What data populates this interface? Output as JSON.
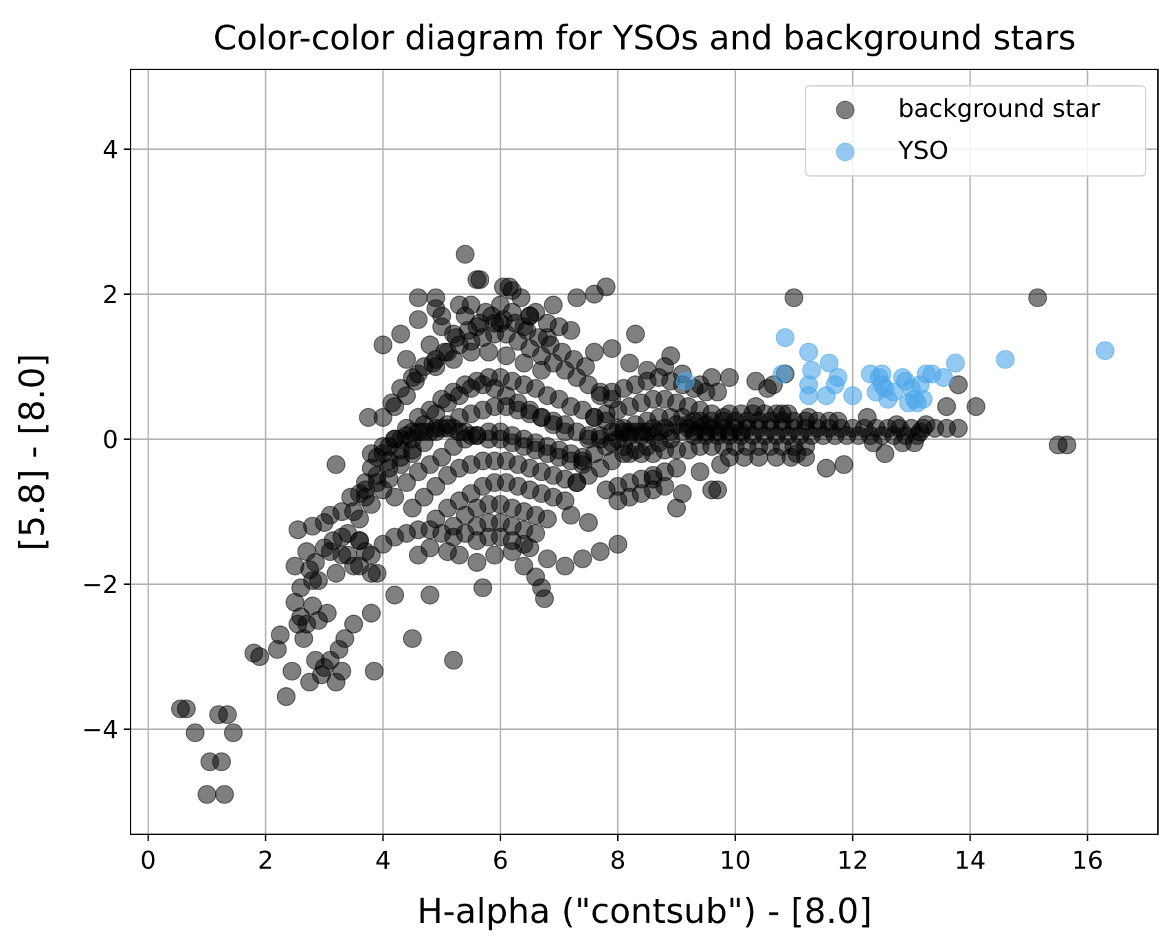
{
  "chart_data": {
    "type": "scatter",
    "title": "Color-color diagram for YSOs and background stars",
    "xlabel": "H-alpha (\"contsub\") - [8.0]",
    "ylabel": "[5.8] - [8.0]",
    "xlim": [
      -0.3,
      17.2
    ],
    "ylim": [
      -5.45,
      5.1
    ],
    "xticks": [
      0,
      2,
      4,
      6,
      8,
      10,
      12,
      14,
      16
    ],
    "xtick_labels": [
      "0",
      "2",
      "4",
      "6",
      "8",
      "10",
      "12",
      "14",
      "16"
    ],
    "yticks": [
      -4,
      -2,
      0,
      2,
      4
    ],
    "ytick_labels": [
      "−4",
      "−2",
      "0",
      "2",
      "4"
    ],
    "grid": true,
    "legend_position": "top-right",
    "series": [
      {
        "name": "background star",
        "color": "#000000",
        "opacity": 0.5,
        "x": [
          0.55,
          0.65,
          0.8,
          1.0,
          1.05,
          1.2,
          1.25,
          1.3,
          1.35,
          1.45,
          1.8,
          1.9,
          2.2,
          2.25,
          2.35,
          2.45,
          2.5,
          2.55,
          2.6,
          2.65,
          2.7,
          2.75,
          2.8,
          2.85,
          2.9,
          2.95,
          3.0,
          3.05,
          3.1,
          3.2,
          3.25,
          3.3,
          3.35,
          3.5,
          3.8,
          3.85,
          2.5,
          2.55,
          2.6,
          2.7,
          2.75,
          2.8,
          2.85,
          2.9,
          3.0,
          3.1,
          3.15,
          3.2,
          3.3,
          3.4,
          3.5,
          3.6,
          3.7,
          3.8,
          2.8,
          3.0,
          3.1,
          3.3,
          3.45,
          3.6,
          3.7,
          3.9,
          4.0,
          4.2,
          4.4,
          4.5,
          4.7,
          4.9,
          5.1,
          5.3,
          5.5,
          5.7,
          5.9,
          6.1,
          6.3,
          6.5,
          6.7,
          6.9,
          7.1,
          7.3,
          7.5,
          7.7,
          7.9,
          3.8,
          4.0,
          4.2,
          4.4,
          4.6,
          4.8,
          5.0,
          5.2,
          5.4,
          5.6,
          5.8,
          6.0,
          6.2,
          6.4,
          6.6,
          6.8,
          7.0,
          7.2,
          7.4,
          7.6,
          7.8,
          8.0,
          8.2,
          8.4,
          8.6,
          4.1,
          4.3,
          4.5,
          4.7,
          4.9,
          5.1,
          5.3,
          5.5,
          5.7,
          5.9,
          6.1,
          6.3,
          6.5,
          6.7,
          6.9,
          7.1,
          7.3,
          7.5,
          7.7,
          7.9,
          8.1,
          4.2,
          4.4,
          4.6,
          4.8,
          5.0,
          5.2,
          5.4,
          5.6,
          5.8,
          6.0,
          6.2,
          6.4,
          6.6,
          6.8,
          7.0,
          7.2,
          7.4,
          4.5,
          4.7,
          4.9,
          5.1,
          5.3,
          5.5,
          5.7,
          5.9,
          6.1,
          6.3,
          6.5,
          6.7,
          6.9,
          7.1,
          7.3,
          4.9,
          5.1,
          5.3,
          5.5,
          5.7,
          5.9,
          6.1,
          6.3,
          6.5,
          6.7,
          6.9,
          7.1,
          5.2,
          5.4,
          5.6,
          5.8,
          6.0,
          6.2,
          6.4,
          6.6,
          6.8,
          5.4,
          5.6,
          5.8,
          6.0,
          6.2,
          6.4,
          6.6,
          5.6,
          5.8,
          6.0,
          6.2,
          6.4,
          4.1,
          4.3,
          4.5,
          4.7,
          4.9,
          5.1,
          5.3,
          5.5,
          5.7,
          5.9,
          6.1,
          6.3,
          6.5,
          6.7,
          6.9,
          7.1,
          4.3,
          4.6,
          4.9,
          5.2,
          5.5,
          5.8,
          6.1,
          6.4,
          6.7,
          4.4,
          4.8,
          5.2,
          5.6,
          6.0,
          6.4,
          6.8,
          5.0,
          5.5,
          6.0,
          6.5,
          3.7,
          3.9,
          4.1,
          4.3,
          4.5,
          4.7,
          4.9,
          5.1,
          5.3,
          5.5,
          3.5,
          3.7,
          3.9,
          4.1,
          4.3,
          4.5,
          3.4,
          3.6,
          3.8,
          4.0,
          3.3,
          3.6,
          3.6,
          3.8,
          4.0,
          4.2,
          4.4,
          4.6,
          4.8,
          5.0,
          5.2,
          3.8,
          4.0,
          4.2,
          4.4,
          4.6,
          4.8,
          5.0,
          5.2,
          5.4,
          5.6,
          5.8,
          6.0,
          6.2,
          6.4,
          6.6,
          6.8,
          7.0,
          7.2,
          7.4,
          4.6,
          4.8,
          5.1,
          5.3,
          5.6,
          5.9,
          6.2,
          6.5,
          6.8,
          7.1,
          7.4,
          7.7,
          8.0,
          3.2,
          3.9,
          4.2,
          4.5,
          4.8,
          5.2,
          5.7,
          6.4,
          6.6,
          6.7,
          6.75,
          7.2,
          7.5,
          3.75,
          4.15,
          4.55,
          4.85,
          5.05,
          5.25,
          5.45,
          5.65,
          5.85,
          6.05,
          6.25,
          6.45,
          6.65,
          6.85,
          7.05,
          7.25,
          7.45,
          4.0,
          4.3,
          4.6,
          4.9,
          5.4,
          5.6,
          5.65,
          5.75,
          6.05,
          6.15,
          6.2,
          6.35,
          6.6,
          6.9,
          7.0,
          7.3,
          7.6,
          7.8,
          4.6,
          4.9,
          5.0,
          5.3,
          5.4,
          5.9,
          6.2,
          6.5,
          6.8,
          7.2,
          7.3,
          7.5,
          7.7,
          7.9,
          8.1,
          8.3,
          8.5,
          8.7,
          8.9,
          7.4,
          7.6,
          7.8,
          8.0,
          8.2,
          8.4,
          8.6,
          8.8,
          9.0,
          9.2,
          7.5,
          7.7,
          7.9,
          8.1,
          8.3,
          8.5,
          8.7,
          8.9,
          9.1,
          9.3,
          9.5,
          7.6,
          7.8,
          8.0,
          8.2,
          8.4,
          8.6,
          8.8,
          9.0,
          9.2,
          9.4,
          9.6,
          9.8,
          7.7,
          7.9,
          8.1,
          8.3,
          8.5,
          8.7,
          8.9,
          9.1,
          9.3,
          9.5,
          7.8,
          8.0,
          8.2,
          8.4,
          8.6,
          8.8,
          9.0,
          8.0,
          8.2,
          8.4,
          8.6,
          8.8,
          8.1,
          8.3,
          8.5,
          8.7,
          8.9,
          9.1,
          9.3,
          9.5,
          9.7,
          9.9,
          10.1,
          8.2,
          8.4,
          8.6,
          8.8,
          9.0,
          9.2,
          9.4,
          9.6,
          9.8,
          7.6,
          7.9,
          8.2,
          8.5,
          8.8,
          9.1,
          9.4,
          9.7,
          8.3,
          8.9,
          9.6,
          9.1,
          9.7,
          8.6,
          9.0,
          9.4,
          9.2,
          9.4,
          9.6,
          9.8,
          10.0,
          10.2,
          10.4,
          10.6,
          10.8,
          11.0,
          11.2,
          11.4,
          11.6,
          11.8,
          12.0,
          12.2,
          12.4,
          12.6,
          12.8,
          13.0,
          13.2,
          13.4,
          13.6,
          13.8,
          9.3,
          9.5,
          9.7,
          9.9,
          10.1,
          10.3,
          10.5,
          10.7,
          10.9,
          11.1,
          11.3,
          11.5,
          11.7,
          11.9,
          12.1,
          12.3,
          12.5,
          12.7,
          12.9,
          13.1,
          9.4,
          9.6,
          9.8,
          10.0,
          10.2,
          10.4,
          10.6,
          10.8,
          11.0,
          11.2,
          11.4,
          11.6,
          10.0,
          10.2,
          10.4,
          10.6,
          10.8,
          11.0,
          11.2,
          9.9,
          10.1,
          10.3,
          10.5,
          10.7,
          10.9,
          9.9,
          10.15,
          10.4,
          10.7,
          10.95,
          11.2,
          9.6,
          9.75,
          9.9,
          10.35,
          10.55,
          10.65,
          10.85,
          11.05,
          11.55,
          11.85,
          12.35,
          12.55,
          12.85,
          13.05,
          13.15,
          10.35,
          10.8,
          11.25,
          11.75,
          12.25,
          12.75,
          13.25,
          11.0,
          13.6,
          14.1,
          15.15,
          13.8,
          15.5,
          15.65
        ],
        "y": [
          -3.72,
          -3.72,
          -4.05,
          -4.9,
          -4.45,
          -3.8,
          -4.45,
          -4.9,
          -3.8,
          -4.05,
          -2.95,
          -3.0,
          -2.9,
          -2.7,
          -3.55,
          -3.2,
          -2.25,
          -2.55,
          -2.45,
          -2.75,
          -2.55,
          -3.35,
          -2.3,
          -3.05,
          -2.5,
          -3.25,
          -3.15,
          -2.4,
          -3.05,
          -3.35,
          -2.9,
          -3.2,
          -2.75,
          -2.55,
          -2.4,
          -3.2,
          -1.75,
          -1.25,
          -2.05,
          -1.55,
          -1.8,
          -1.95,
          -1.7,
          -1.95,
          -1.5,
          -1.55,
          -1.4,
          -1.85,
          -1.35,
          -1.6,
          -1.75,
          -1.4,
          -1.55,
          -1.85,
          -1.2,
          -1.15,
          -1.05,
          -1.0,
          -0.8,
          -0.75,
          -0.6,
          -0.25,
          0.3,
          0.45,
          0.6,
          0.85,
          1.0,
          1.1,
          1.2,
          1.3,
          1.35,
          1.4,
          1.45,
          1.45,
          1.35,
          1.25,
          1.15,
          1.05,
          0.95,
          0.85,
          0.75,
          0.65,
          0.55,
          -0.4,
          -0.2,
          0.0,
          0.15,
          0.3,
          0.4,
          0.55,
          0.65,
          0.75,
          0.8,
          0.85,
          0.85,
          0.8,
          0.75,
          0.7,
          0.6,
          0.55,
          0.45,
          0.4,
          0.3,
          0.25,
          0.15,
          0.1,
          0.05,
          0.05,
          -0.55,
          -0.35,
          -0.2,
          -0.05,
          0.1,
          0.2,
          0.3,
          0.35,
          0.4,
          0.45,
          0.45,
          0.4,
          0.35,
          0.3,
          0.25,
          0.2,
          0.1,
          0.05,
          0.0,
          -0.05,
          -0.1,
          -0.8,
          -0.6,
          -0.45,
          -0.35,
          -0.25,
          -0.1,
          0.0,
          0.05,
          0.1,
          0.1,
          0.05,
          0.0,
          -0.05,
          -0.1,
          -0.15,
          -0.2,
          -0.25,
          -0.95,
          -0.8,
          -0.65,
          -0.5,
          -0.4,
          -0.35,
          -0.3,
          -0.3,
          -0.3,
          -0.35,
          -0.4,
          -0.45,
          -0.5,
          -0.55,
          -0.6,
          -1.1,
          -0.95,
          -0.85,
          -0.75,
          -0.65,
          -0.6,
          -0.6,
          -0.65,
          -0.7,
          -0.75,
          -0.8,
          -0.85,
          -1.2,
          -1.05,
          -0.95,
          -0.9,
          -0.9,
          -0.95,
          -1.0,
          -1.05,
          -1.1,
          -1.3,
          -1.2,
          -1.15,
          -1.15,
          -1.2,
          -1.25,
          -1.3,
          -1.4,
          -1.35,
          -1.35,
          -1.4,
          -1.45,
          -0.1,
          0.0,
          0.1,
          0.2,
          0.35,
          0.5,
          0.6,
          0.7,
          0.75,
          0.7,
          0.6,
          0.5,
          0.4,
          0.3,
          0.2,
          0.1,
          0.7,
          0.9,
          1.0,
          1.1,
          1.2,
          1.2,
          1.15,
          1.05,
          0.95,
          1.1,
          1.3,
          1.45,
          1.55,
          1.6,
          1.55,
          1.4,
          1.7,
          1.85,
          1.85,
          1.7,
          -0.7,
          -0.5,
          -0.3,
          -0.15,
          0.0,
          0.1,
          0.15,
          0.15,
          0.1,
          0.05,
          -1.0,
          -0.8,
          -0.6,
          -0.4,
          -0.25,
          -0.15,
          -1.3,
          -1.1,
          -0.9,
          -0.7,
          -1.6,
          -1.4,
          -1.75,
          -1.6,
          -1.45,
          -1.35,
          -1.3,
          -1.25,
          -1.25,
          -1.3,
          -1.35,
          -0.2,
          -0.1,
          0.0,
          0.05,
          0.1,
          0.1,
          0.15,
          0.15,
          0.1,
          0.05,
          0.0,
          0.0,
          -0.05,
          -0.1,
          -0.15,
          -0.2,
          -0.25,
          -0.3,
          -0.35,
          -1.6,
          -1.5,
          -1.55,
          -1.6,
          -1.7,
          -1.6,
          -1.55,
          -1.5,
          -1.65,
          -1.75,
          -1.65,
          -1.55,
          -1.45,
          -0.35,
          -1.85,
          -2.15,
          -2.75,
          -2.15,
          -3.05,
          -2.05,
          -1.75,
          -1.9,
          -2.05,
          -2.2,
          -1.05,
          -1.15,
          0.3,
          0.5,
          0.8,
          1.05,
          1.2,
          1.4,
          1.5,
          1.6,
          1.7,
          1.65,
          1.6,
          1.5,
          1.4,
          1.3,
          1.2,
          1.1,
          1.0,
          1.3,
          1.45,
          1.95,
          1.95,
          2.55,
          2.2,
          2.2,
          1.75,
          2.1,
          2.1,
          2.05,
          1.95,
          1.75,
          1.85,
          1.55,
          1.95,
          2.0,
          2.1,
          1.65,
          1.8,
          1.55,
          1.85,
          1.7,
          1.6,
          1.75,
          1.7,
          1.6,
          1.5,
          -0.6,
          -0.5,
          -0.4,
          -0.3,
          -0.2,
          -0.15,
          -0.1,
          -0.05,
          0.0,
          -0.3,
          -0.2,
          -0.1,
          0.0,
          0.05,
          0.1,
          0.15,
          0.15,
          0.2,
          0.2,
          0.0,
          0.05,
          0.1,
          0.15,
          0.2,
          0.25,
          0.3,
          0.3,
          0.3,
          0.25,
          0.2,
          0.3,
          0.35,
          0.4,
          0.45,
          0.5,
          0.55,
          0.55,
          0.5,
          0.45,
          0.4,
          0.35,
          0.3,
          0.6,
          0.65,
          0.7,
          0.75,
          0.8,
          0.85,
          0.8,
          0.75,
          0.7,
          0.65,
          -0.7,
          -0.65,
          -0.6,
          -0.55,
          -0.5,
          -0.45,
          -0.4,
          -0.85,
          -0.8,
          -0.75,
          -0.7,
          -0.65,
          0.1,
          0.1,
          0.1,
          0.1,
          0.1,
          0.1,
          0.1,
          0.1,
          0.1,
          0.1,
          0.1,
          -0.2,
          -0.2,
          -0.2,
          -0.15,
          -0.15,
          -0.15,
          -0.1,
          -0.1,
          -0.1,
          1.2,
          1.25,
          1.05,
          0.95,
          1.0,
          0.9,
          0.75,
          0.65,
          1.45,
          1.15,
          0.85,
          -0.75,
          -0.7,
          -0.55,
          -0.95,
          -0.45,
          0.15,
          0.15,
          0.15,
          0.15,
          0.15,
          0.15,
          0.15,
          0.15,
          0.15,
          0.15,
          0.15,
          0.15,
          0.15,
          0.15,
          0.15,
          0.15,
          0.15,
          0.15,
          0.15,
          0.15,
          0.15,
          0.15,
          0.15,
          0.15,
          0.05,
          0.05,
          0.05,
          0.05,
          0.05,
          0.05,
          0.05,
          0.05,
          0.05,
          0.05,
          0.05,
          0.05,
          0.05,
          0.05,
          0.05,
          0.05,
          0.05,
          0.05,
          0.05,
          0.05,
          0.25,
          0.25,
          0.25,
          0.25,
          0.25,
          0.25,
          0.25,
          0.25,
          0.25,
          0.25,
          0.25,
          0.25,
          -0.1,
          -0.1,
          -0.1,
          -0.1,
          -0.1,
          -0.1,
          -0.1,
          0.35,
          0.35,
          0.35,
          0.35,
          0.35,
          0.35,
          -0.25,
          -0.25,
          -0.25,
          -0.25,
          -0.25,
          -0.25,
          -0.7,
          -0.35,
          0.85,
          0.8,
          0.7,
          0.75,
          0.9,
          -0.2,
          -0.4,
          -0.35,
          -0.05,
          -0.2,
          -0.05,
          -0.05,
          0.1,
          0.45,
          0.35,
          0.3,
          0.25,
          0.3,
          0.2,
          0.2,
          1.95,
          0.45,
          0.45,
          1.95,
          0.75,
          -0.08,
          -0.08
        ]
      },
      {
        "name": "YSO",
        "color": "#4DA6EA",
        "opacity": 0.6,
        "x": [
          9.15,
          10.8,
          10.85,
          11.25,
          11.3,
          11.25,
          11.25,
          11.55,
          11.6,
          11.75,
          11.7,
          12.0,
          12.3,
          12.4,
          12.45,
          12.5,
          12.5,
          12.55,
          12.6,
          12.7,
          12.85,
          12.9,
          12.95,
          13.0,
          13.05,
          13.1,
          13.15,
          13.2,
          13.25,
          13.35,
          13.55,
          13.75,
          14.6,
          16.3
        ],
        "y": [
          0.8,
          0.9,
          1.4,
          1.2,
          0.95,
          0.75,
          0.6,
          0.6,
          1.05,
          0.85,
          0.75,
          0.6,
          0.9,
          0.65,
          0.85,
          0.9,
          0.75,
          0.7,
          0.55,
          0.65,
          0.85,
          0.8,
          0.5,
          0.7,
          0.55,
          0.5,
          0.75,
          0.55,
          0.9,
          0.9,
          0.85,
          1.05,
          1.1,
          1.22
        ]
      }
    ]
  }
}
